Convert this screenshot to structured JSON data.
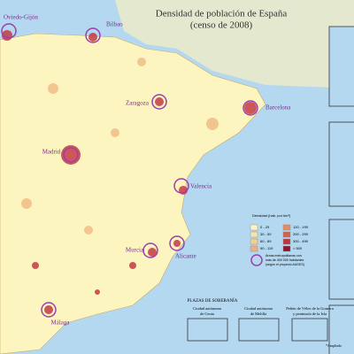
{
  "title": [
    "Densidad de población de España",
    "(censo de 2008)"
  ],
  "cities": [
    "Oviedo-Gijón",
    "Bilbao",
    "Zaragoza",
    "Barcelona",
    "Madrid",
    "Valencia",
    "Murcia",
    "Alicante",
    "Málaga"
  ],
  "legend": {
    "title": "Densidad (hab. por km²)",
    "items": [
      {
        "label": "0 - 29",
        "color": "#fdf5c0"
      },
      {
        "label": "30 - 59",
        "color": "#f9e3a6"
      },
      {
        "label": "60 - 89",
        "color": "#f6cf8c"
      },
      {
        "label": "90 - 119",
        "color": "#f0b27a"
      },
      {
        "label": "120 - 199",
        "color": "#e48a66"
      },
      {
        "label": "200 - 299",
        "color": "#d6604f"
      },
      {
        "label": "300 - 499",
        "color": "#bf3340"
      },
      {
        "label": "> 500",
        "color": "#8e1530"
      }
    ],
    "note": [
      "Áreas metropolitanas con",
      "más de 400 000 habitantes",
      "(según el proyecto AUDES)"
    ]
  },
  "plazas": {
    "title": "PLAZAS DE SOBERANÍA",
    "items": [
      [
        "Ciudad autónoma",
        "de Ceuta"
      ],
      [
        "Ciudad autónoma",
        "de Melilla"
      ],
      [
        "Peñón de Vélez de la Gomera",
        "y península de la Isla"
      ]
    ],
    "footnote": "*Ampliado"
  }
}
